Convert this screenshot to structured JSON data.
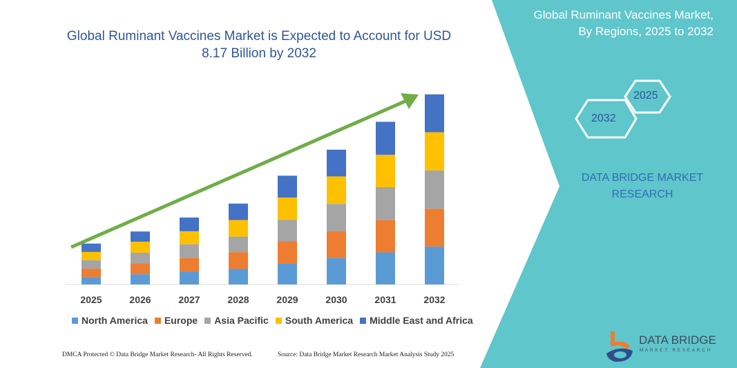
{
  "header": {
    "title": "Global Ruminant Vaccines Market is Expected to Account for USD 8.17 Billion by 2032"
  },
  "side_panel": {
    "title_line1": "Global Ruminant Vaccines Market,",
    "title_line2": "By Regions, 2025 to 2032",
    "hex_start": "2025",
    "hex_end": "2032",
    "brand_line1": "DATA BRIDGE MARKET",
    "brand_line2": "RESEARCH",
    "panel_color": "#5fc6cb"
  },
  "logo": {
    "name": "DATA BRIDGE",
    "tagline": "MARKET RESEARCH"
  },
  "footer": {
    "left": "DMCA Protected © Data Bridge Market Research- All Rights Reserved.",
    "right": "Source: Data Bridge Market Research Market Analysis Study 2025"
  },
  "chart_data": {
    "type": "bar",
    "stacked": true,
    "title": "Global Ruminant Vaccines Market is Expected to Account for USD 8.17 Billion by 2032",
    "categories": [
      "2025",
      "2026",
      "2027",
      "2028",
      "2029",
      "2030",
      "2031",
      "2032"
    ],
    "ylim": [
      0,
      8.17
    ],
    "grid": false,
    "legend_position": "bottom",
    "trend_arrow": true,
    "series": [
      {
        "name": "North America",
        "color": "#5b9bd5",
        "values": [
          0.32,
          0.44,
          0.55,
          0.67,
          0.91,
          1.14,
          1.38,
          1.63
        ]
      },
      {
        "name": "Europe",
        "color": "#ed7d31",
        "values": [
          0.36,
          0.47,
          0.59,
          0.72,
          0.95,
          1.15,
          1.39,
          1.63
        ]
      },
      {
        "name": "Asia Pacific",
        "color": "#a5a5a5",
        "values": [
          0.37,
          0.46,
          0.59,
          0.67,
          0.92,
          1.18,
          1.42,
          1.65
        ]
      },
      {
        "name": "South America",
        "color": "#ffc000",
        "values": [
          0.35,
          0.47,
          0.56,
          0.71,
          0.96,
          1.18,
          1.39,
          1.64
        ]
      },
      {
        "name": "Middle East and Africa",
        "color": "#4472c4",
        "values": [
          0.36,
          0.44,
          0.59,
          0.71,
          0.94,
          1.15,
          1.42,
          1.63
        ]
      }
    ],
    "arrow_color": "#70ad47"
  }
}
